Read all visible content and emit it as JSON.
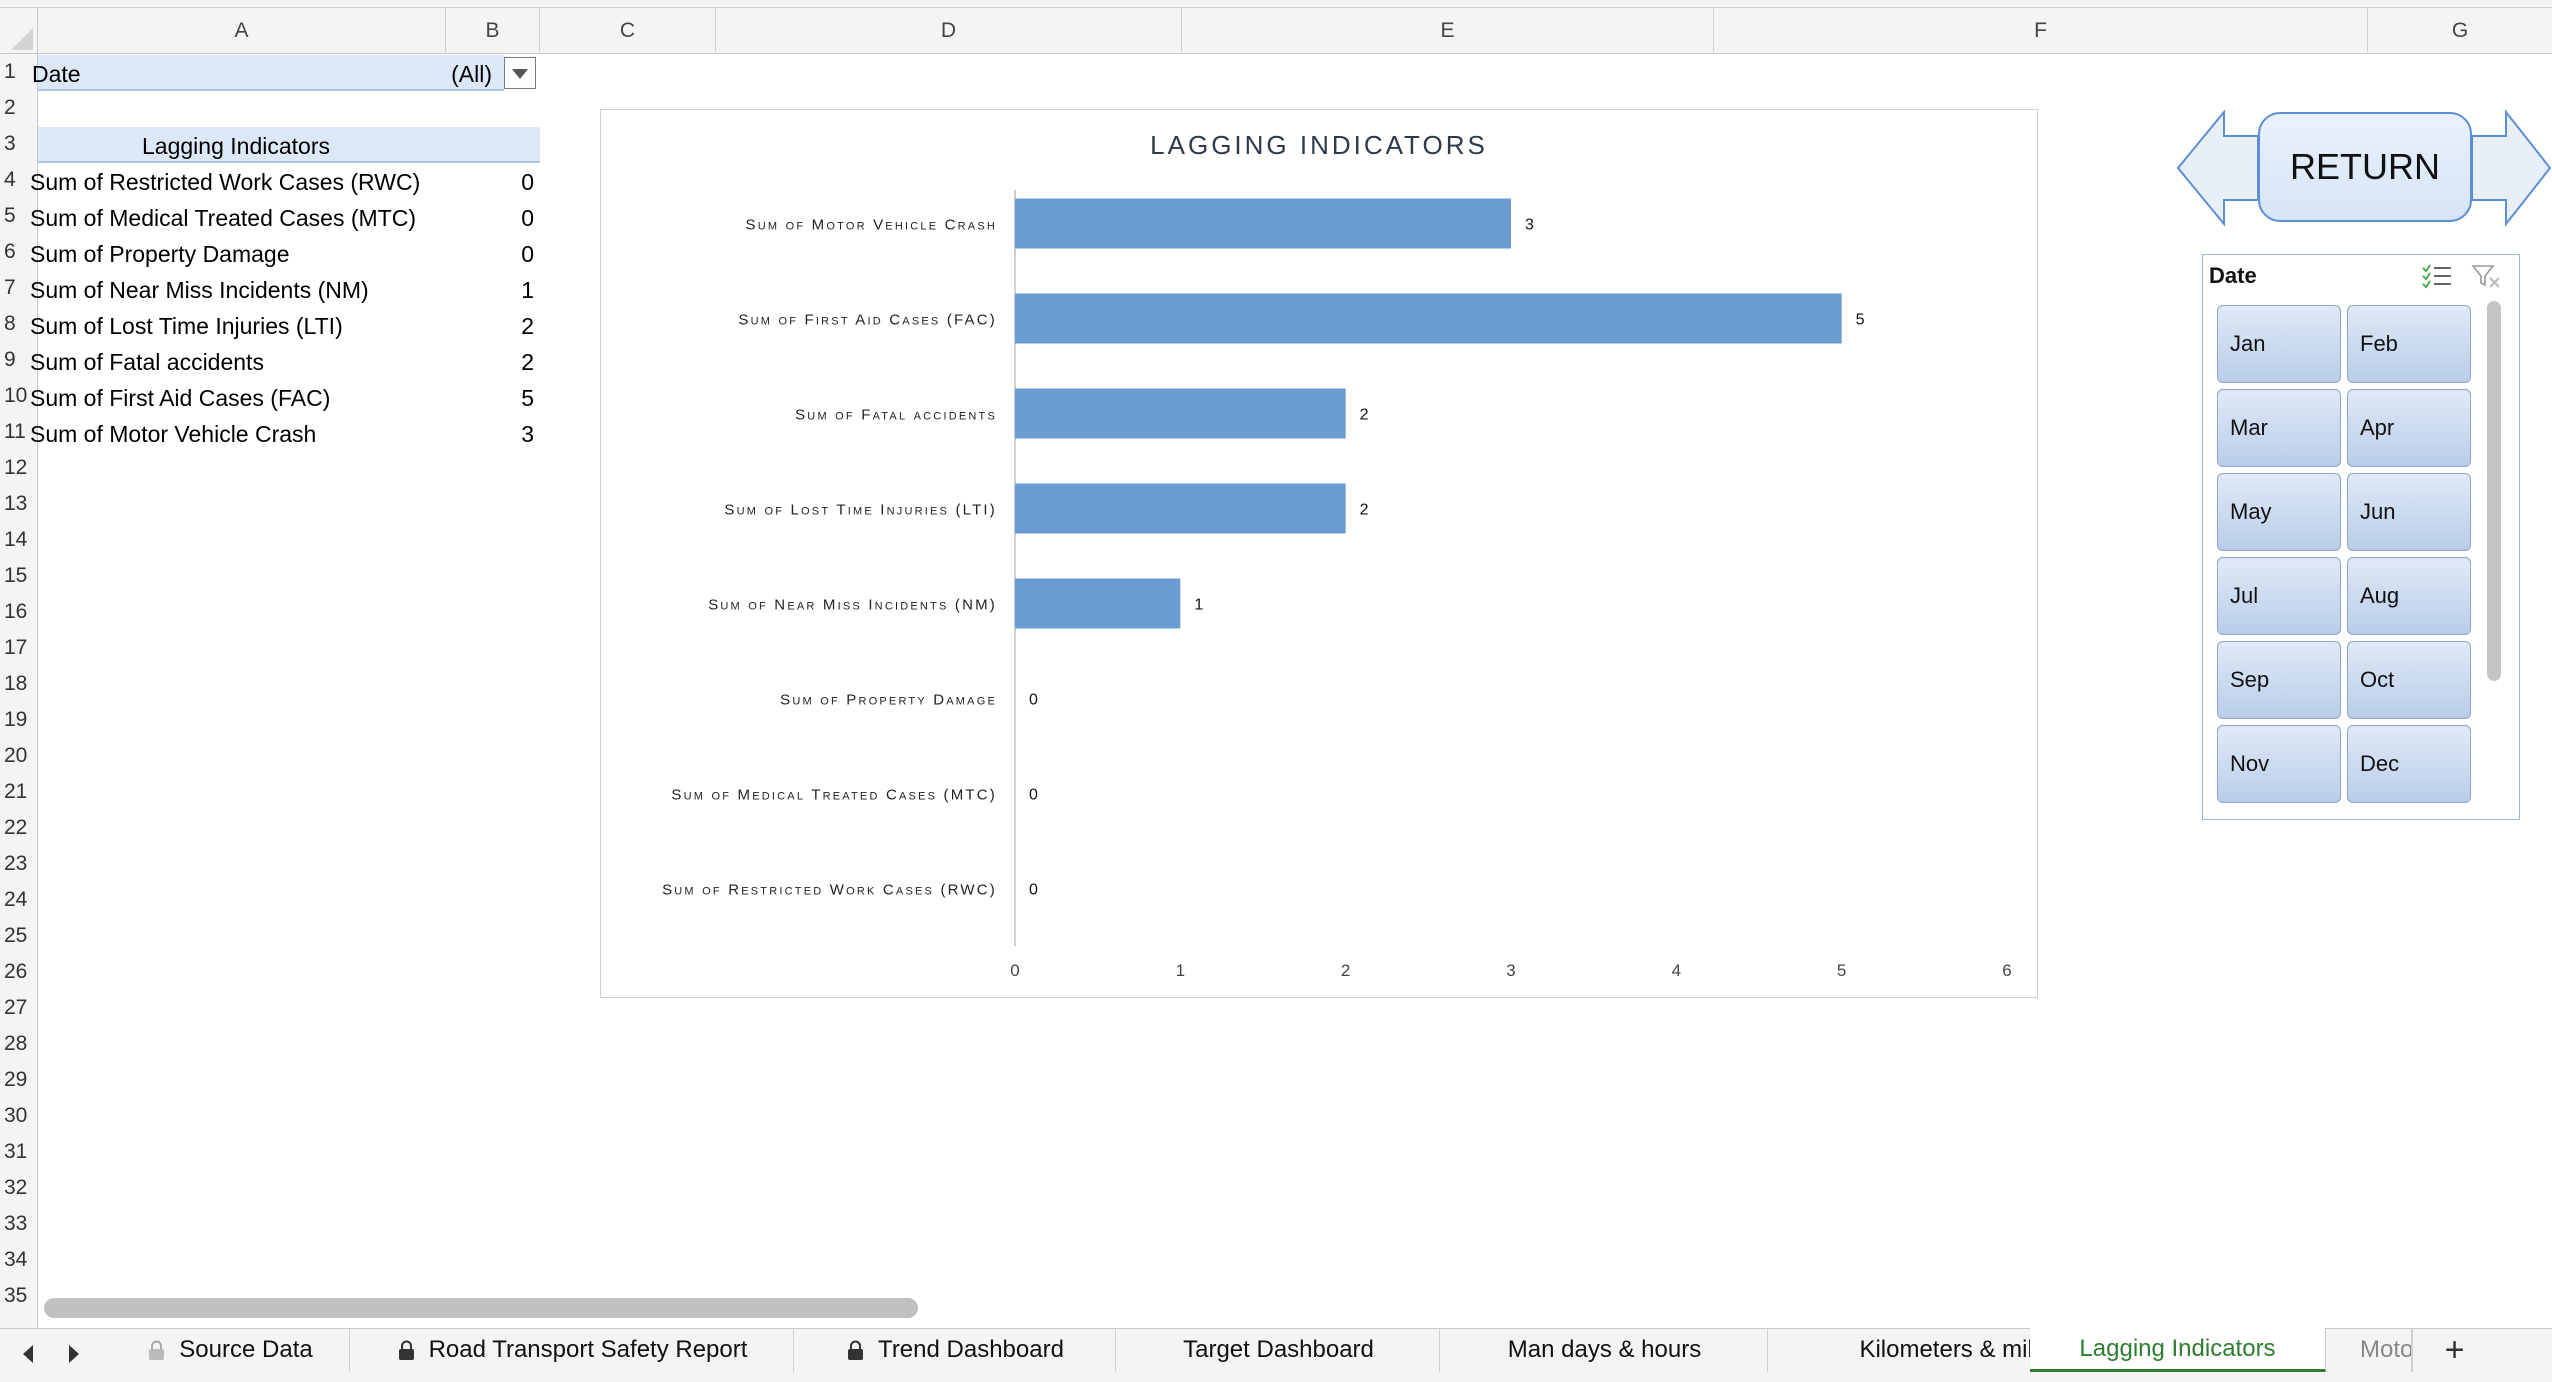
{
  "columns": [
    "A",
    "B",
    "C",
    "D",
    "E",
    "F",
    "G"
  ],
  "rows": [
    "1",
    "2",
    "3",
    "4",
    "5",
    "6",
    "7",
    "8",
    "9",
    "10",
    "11",
    "12",
    "13",
    "14",
    "15",
    "16",
    "17",
    "18",
    "19",
    "20",
    "21",
    "22",
    "23",
    "24",
    "25",
    "26",
    "27",
    "28",
    "29",
    "30",
    "31",
    "32",
    "33",
    "34",
    "35"
  ],
  "pivot": {
    "filter_label": "Date",
    "filter_value": "(All)",
    "header": "Lagging Indicators",
    "items": [
      {
        "label": "Sum of Restricted Work Cases (RWC)",
        "value": "0"
      },
      {
        "label": "Sum of Medical Treated Cases (MTC)",
        "value": "0"
      },
      {
        "label": "Sum of Property Damage",
        "value": "0"
      },
      {
        "label": "Sum of Near Miss Incidents (NM)",
        "value": "1"
      },
      {
        "label": "Sum of Lost Time Injuries  (LTI)",
        "value": "2"
      },
      {
        "label": "Sum of Fatal accidents",
        "value": "2"
      },
      {
        "label": "Sum of  First Aid Cases (FAC)",
        "value": "5"
      },
      {
        "label": "Sum of Motor Vehicle Crash",
        "value": "3"
      }
    ]
  },
  "chart_data": {
    "type": "bar",
    "orientation": "horizontal",
    "title": "LAGGING INDICATORS",
    "categories": [
      "Sum of Motor Vehicle Crash",
      "Sum of  First Aid Cases (FAC)",
      "Sum of Fatal accidents",
      "Sum of Lost Time Injuries  (LTI)",
      "Sum of Near Miss Incidents (NM)",
      "Sum of Property Damage",
      "Sum of Medical Treated Cases (MTC)",
      "Sum of Restricted Work Cases (RWC)"
    ],
    "values": [
      3,
      5,
      2,
      2,
      1,
      0,
      0,
      0
    ],
    "xlim": [
      0,
      6
    ],
    "ticks": [
      0,
      1,
      2,
      3,
      4,
      5,
      6
    ],
    "data_labels": true,
    "grid": false,
    "bar_color": "#6a9bd1"
  },
  "return_button": {
    "label": "RETURN"
  },
  "slicer": {
    "title": "Date",
    "months": [
      "Jan",
      "Feb",
      "Mar",
      "Apr",
      "May",
      "Jun",
      "Jul",
      "Aug",
      "Sep",
      "Oct",
      "Nov",
      "Dec"
    ]
  },
  "tabs": [
    {
      "label": "Source Data",
      "locked": true
    },
    {
      "label": "Road Transport Safety Report",
      "locked": true
    },
    {
      "label": "Trend Dashboard",
      "locked": true
    },
    {
      "label": "Target Dashboard",
      "locked": false
    },
    {
      "label": "Man days & hours",
      "locked": false
    },
    {
      "label": "Kilometers & miles travelled",
      "locked": false
    },
    {
      "label": "Lagging Indicators",
      "locked": false,
      "active": true
    },
    {
      "label": "Moto",
      "locked": false
    }
  ],
  "colors": {
    "accent": "#2e7d32",
    "bar": "#6a9bd1",
    "pivot_header": "#dce8f5"
  }
}
